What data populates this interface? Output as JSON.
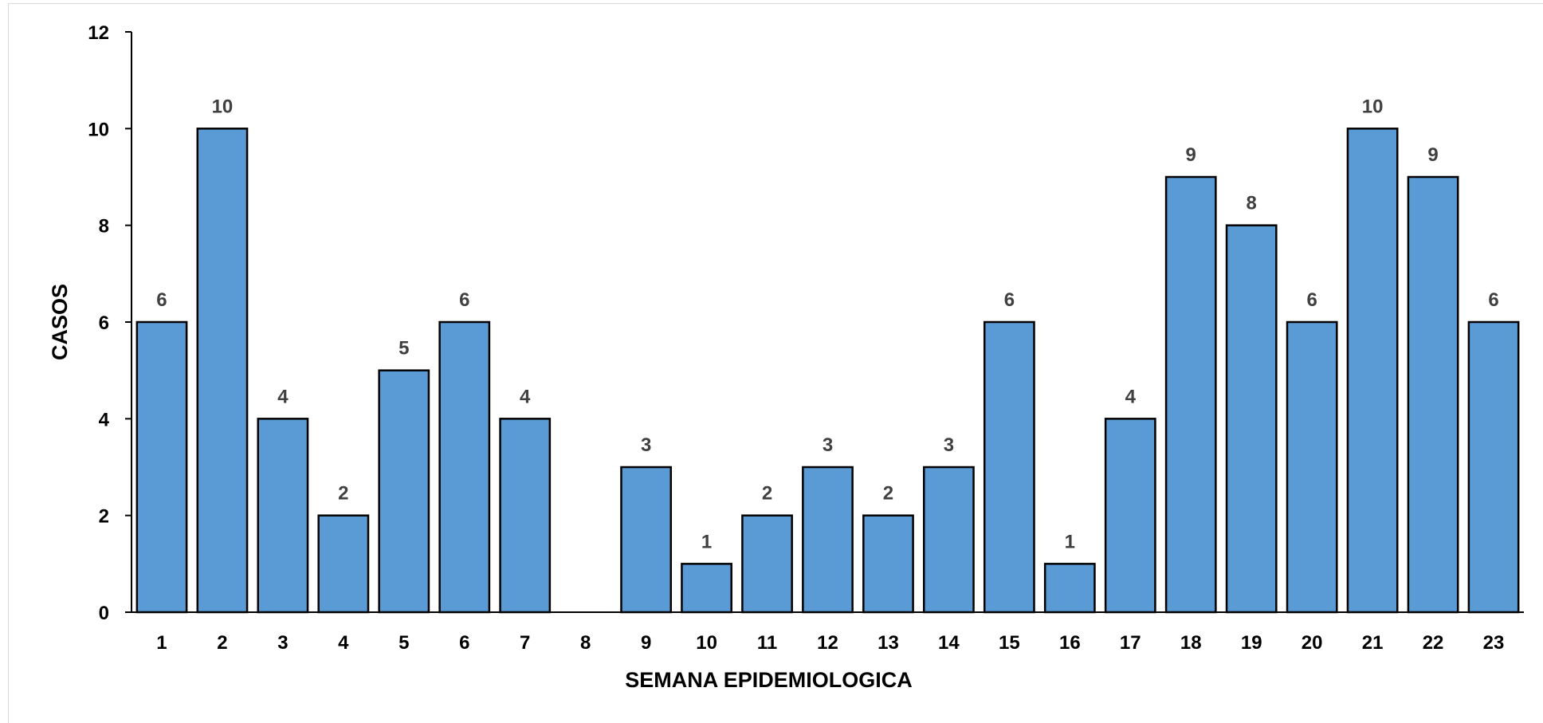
{
  "chart_data": {
    "type": "bar",
    "title": "",
    "xlabel": "SEMANA EPIDEMIOLOGICA",
    "ylabel": "CASOS",
    "categories": [
      "1",
      "2",
      "3",
      "4",
      "5",
      "6",
      "7",
      "8",
      "9",
      "10",
      "11",
      "12",
      "13",
      "14",
      "15",
      "16",
      "17",
      "18",
      "19",
      "20",
      "21",
      "22",
      "23"
    ],
    "values": [
      6,
      10,
      4,
      2,
      5,
      6,
      4,
      0,
      3,
      1,
      2,
      3,
      2,
      3,
      6,
      1,
      4,
      9,
      8,
      6,
      10,
      9,
      6
    ],
    "data_labels_shown": true,
    "hide_zero_labels": true,
    "ylim": [
      0,
      12
    ],
    "yticks": [
      0,
      2,
      4,
      6,
      8,
      10,
      12
    ],
    "grid": false,
    "legend": "none",
    "colors": {
      "bar_fill": "#5b9bd5",
      "bar_stroke": "#000000",
      "axis": "#000000",
      "data_label": "#404040"
    }
  }
}
